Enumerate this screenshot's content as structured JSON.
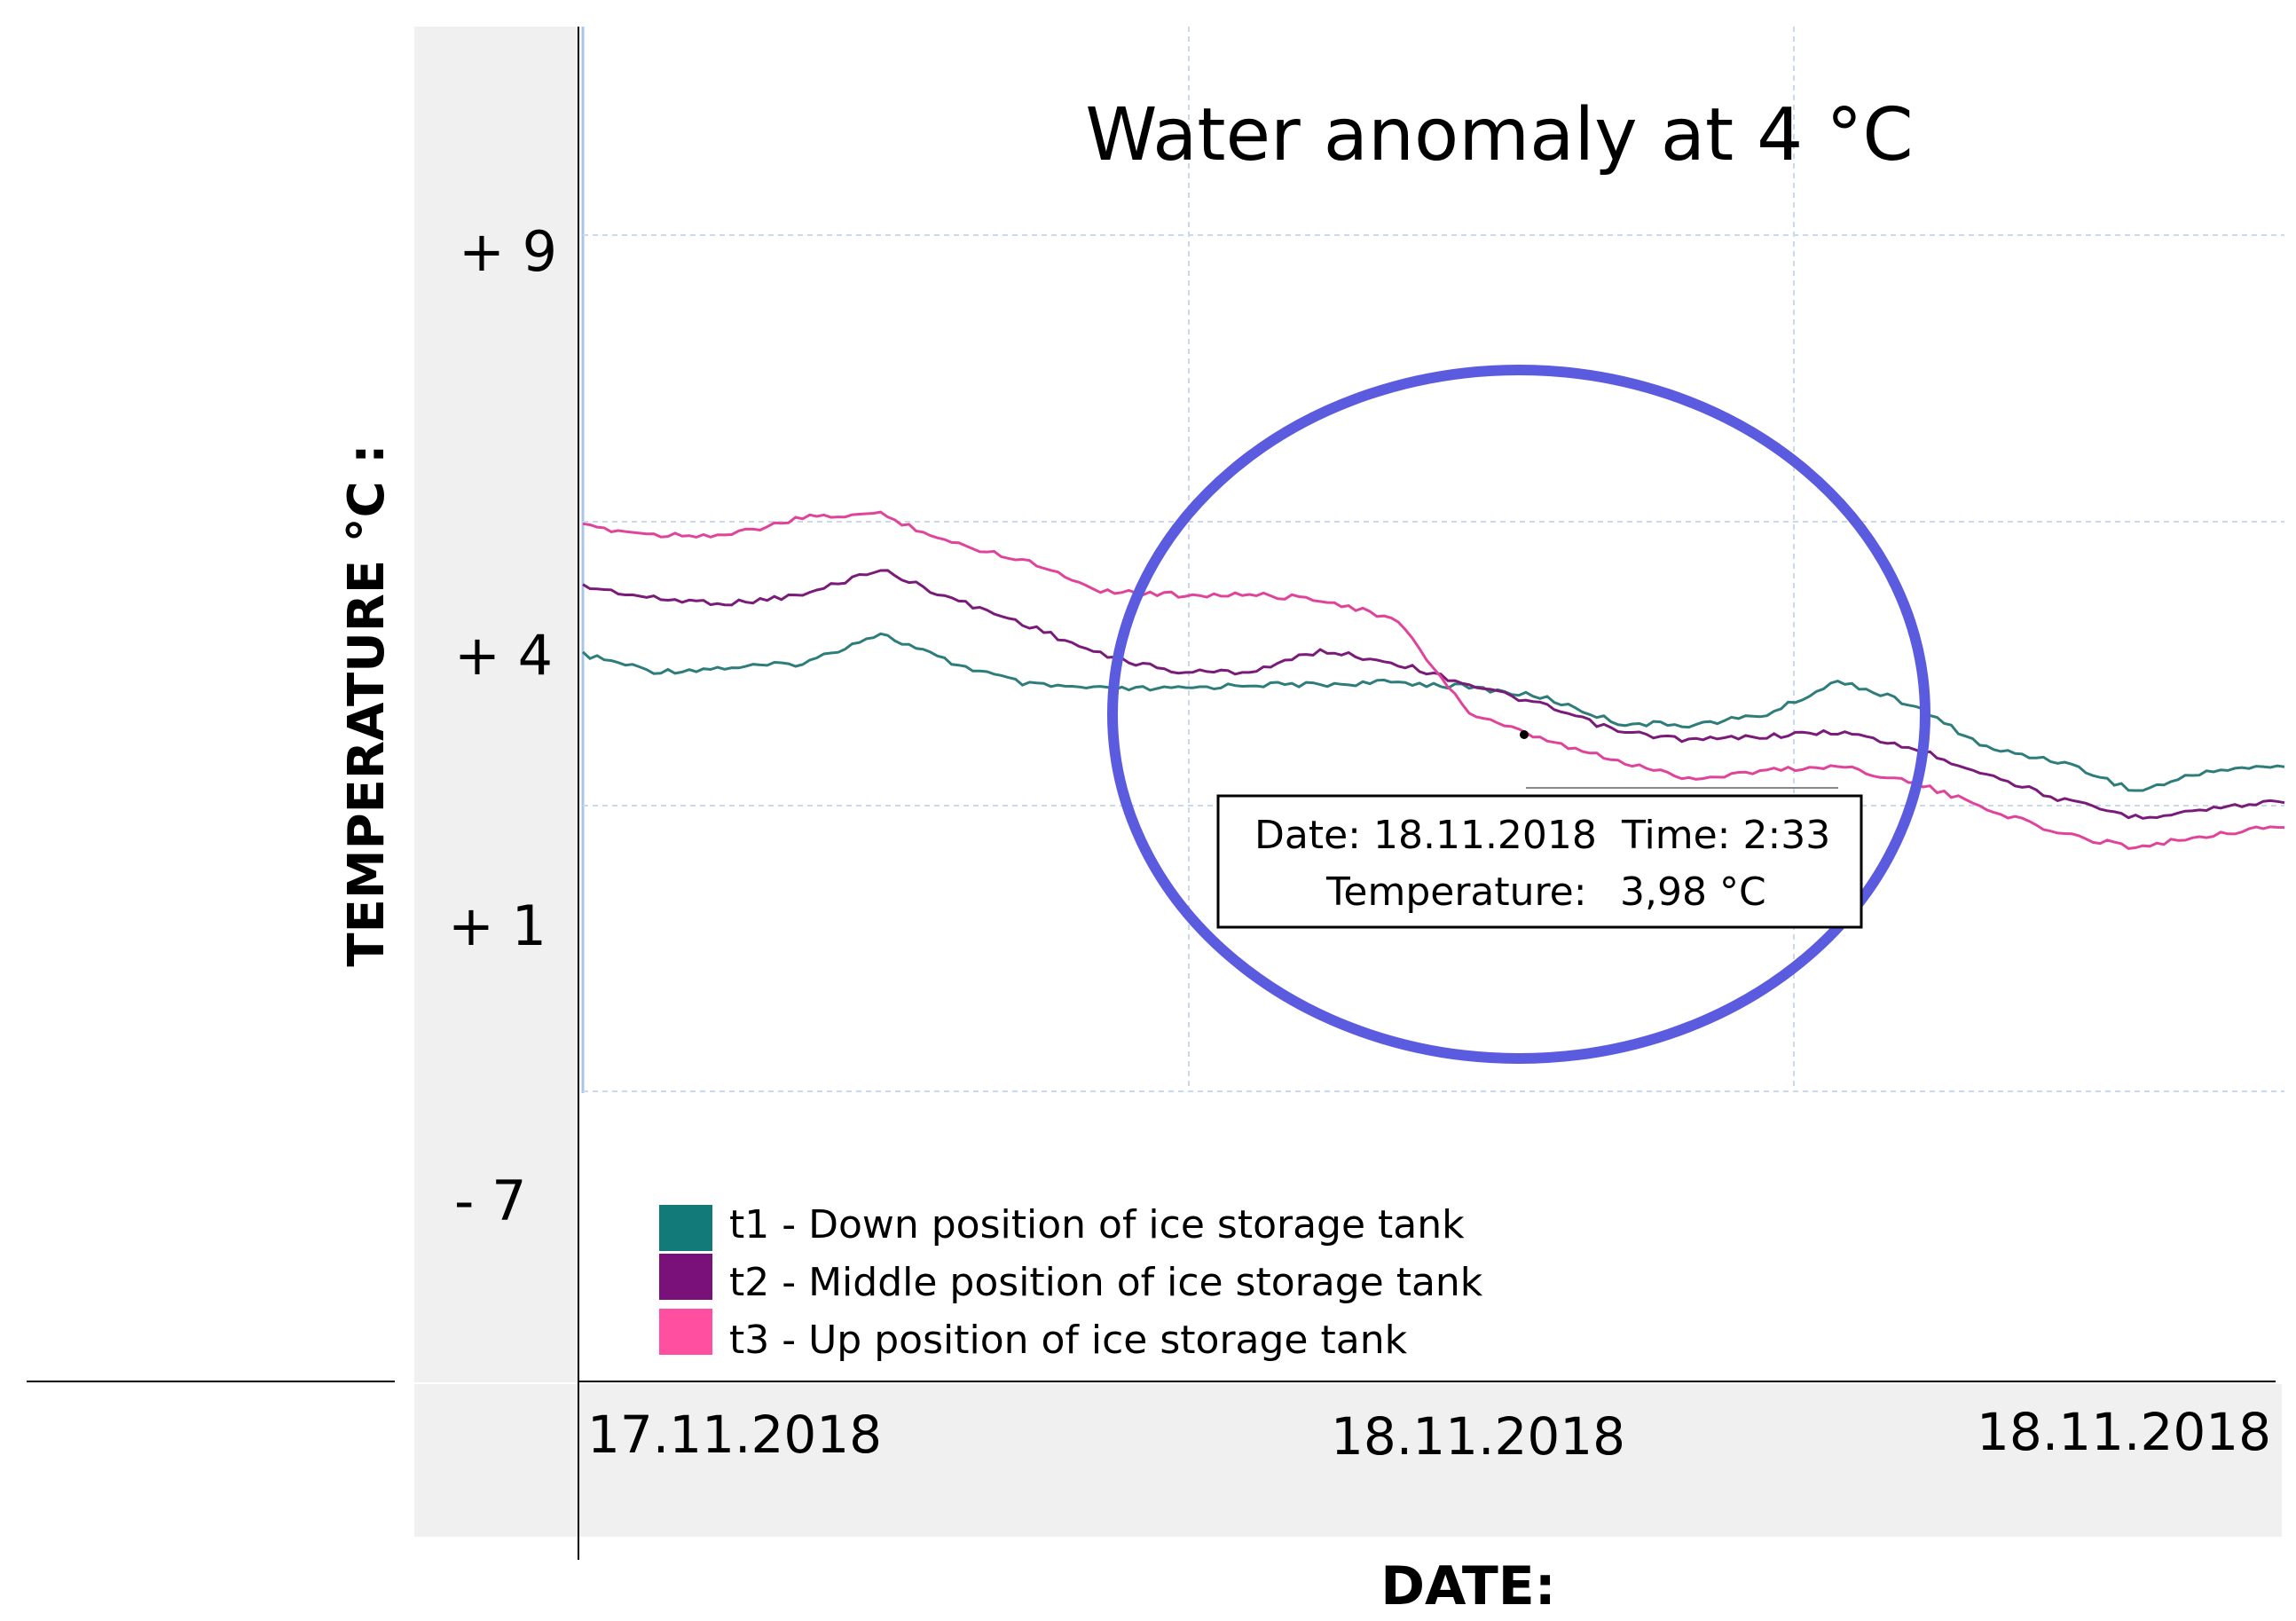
{
  "chart_data": {
    "type": "line",
    "title": "Water anomaly at 4 °C",
    "ylabel": "TEMPERATURE  °C :",
    "xlabel": "DATE:",
    "y_ticks": [
      "+ 9",
      "+ 4",
      "+ 1",
      "- 7"
    ],
    "x_ticks": [
      "17.11.2018",
      "18.11.2018",
      "18.11.2018"
    ],
    "grid": true,
    "legend_position": "bottom-left",
    "colors": {
      "t1": "#2e7d7a",
      "t2": "#7a1b7a",
      "t3": "#e0449a",
      "highlight": "#5b5be0",
      "band": "#f0f0f0"
    },
    "series": [
      {
        "name": "t1 - Down position of ice storage tank",
        "swatch": "#137a7a",
        "values": [
          4.1,
          3.9,
          3.95,
          4.0,
          4.35,
          4.0,
          3.75,
          3.7,
          3.7,
          3.75,
          3.75,
          3.78,
          3.72,
          3.6,
          3.3,
          3.28,
          3.4,
          3.8,
          3.5,
          3.0,
          2.85,
          2.5,
          2.75,
          2.8
        ]
      },
      {
        "name": "t2 - Middle position of ice storage tank",
        "swatch": "#7a107a",
        "values": [
          4.9,
          4.75,
          4.7,
          4.8,
          5.1,
          4.75,
          4.45,
          4.1,
          3.9,
          3.9,
          4.15,
          4.0,
          3.75,
          3.5,
          3.2,
          3.1,
          3.15,
          3.2,
          3.0,
          2.7,
          2.4,
          2.2,
          2.3,
          2.4
        ]
      },
      {
        "name": "t3 - Up position of ice storage tank",
        "swatch": "#ff4fa0",
        "values": [
          5.6,
          5.5,
          5.5,
          5.7,
          5.75,
          5.4,
          5.2,
          4.85,
          4.8,
          4.8,
          4.75,
          4.5,
          3.4,
          3.1,
          2.85,
          2.65,
          2.75,
          2.8,
          2.6,
          2.3,
          2.0,
          1.85,
          2.0,
          2.1
        ]
      }
    ],
    "annotation": {
      "line1_date_label": "Date: 18.11.2018",
      "line1_time_label": "Time: 2:33",
      "line2_temp_label": "Temperature:",
      "line2_temp_value": "3,98 °C"
    }
  }
}
